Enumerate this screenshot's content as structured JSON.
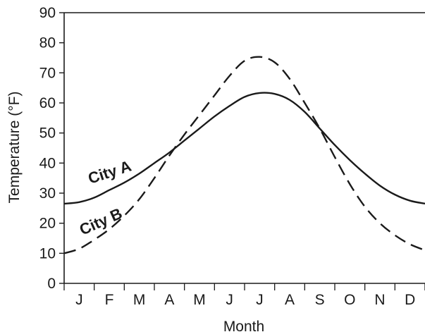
{
  "chart_data": {
    "type": "line",
    "title": "",
    "xlabel": "Month",
    "ylabel": "Temperature (°F)",
    "ylim": [
      0,
      90
    ],
    "yticks": [
      0,
      10,
      20,
      30,
      40,
      50,
      60,
      70,
      80,
      90
    ],
    "categories": [
      "J",
      "F",
      "M",
      "A",
      "M",
      "J",
      "J",
      "A",
      "S",
      "O",
      "N",
      "D"
    ],
    "grid": false,
    "legend": "none",
    "series": [
      {
        "name": "City A",
        "style": "solid",
        "color": "#1a1a1a",
        "x": [
          0,
          0.5,
          1,
          1.5,
          2,
          2.5,
          3,
          3.5,
          4,
          4.5,
          5,
          5.5,
          6,
          6.5,
          7,
          7.5,
          8,
          8.5,
          9,
          9.5,
          10,
          10.5,
          11,
          11.5,
          12
        ],
        "values": [
          26.5,
          27,
          28.5,
          31,
          33.5,
          36.5,
          40,
          43.5,
          47.5,
          51.5,
          55.5,
          59,
          62,
          63.3,
          63,
          61,
          57,
          51.5,
          46,
          41,
          36.5,
          32.5,
          29.5,
          27.5,
          26.5
        ]
      },
      {
        "name": "City B",
        "style": "dashed",
        "color": "#1a1a1a",
        "x": [
          0,
          0.5,
          1,
          1.5,
          2,
          2.5,
          3,
          3.5,
          4,
          4.5,
          5,
          5.5,
          6,
          6.5,
          7,
          7.5,
          8,
          8.5,
          9,
          9.5,
          10,
          10.5,
          11,
          11.5,
          12
        ],
        "values": [
          10,
          11.5,
          14.5,
          18,
          22.5,
          28,
          35,
          42.5,
          49.5,
          56,
          62.5,
          69,
          74,
          75.3,
          73.5,
          68,
          60,
          51.5,
          42,
          33,
          25.5,
          20,
          16,
          13,
          11
        ]
      }
    ],
    "annotations": [
      {
        "text": "City A",
        "series": 0
      },
      {
        "text": "City B",
        "series": 1
      }
    ]
  }
}
